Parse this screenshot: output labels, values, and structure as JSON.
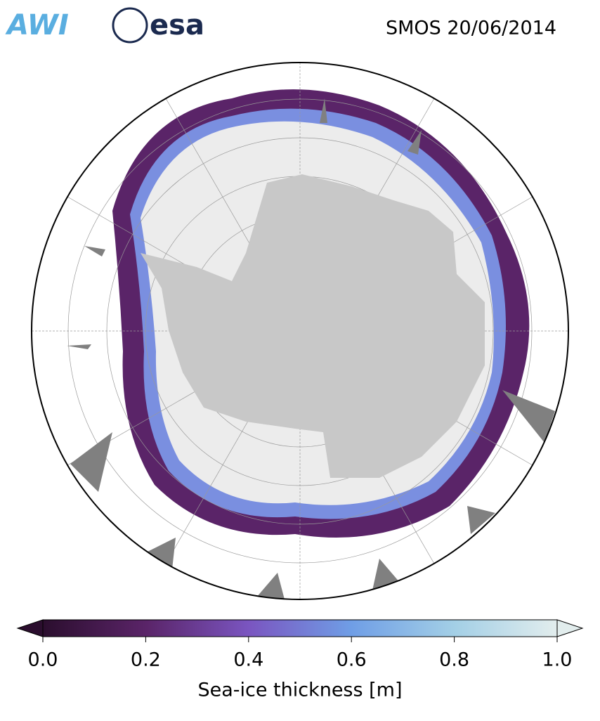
{
  "header": {
    "title": "SMOS 20/06/2014",
    "logos": [
      "AWI",
      "esa"
    ]
  },
  "colorbar": {
    "label": "Sea-ice thickness [m]",
    "lim": [
      0,
      1
    ],
    "ticks": [
      {
        "value": 0,
        "label": "0.0"
      },
      {
        "value": 0.2,
        "label": "0.2"
      },
      {
        "value": 0.4,
        "label": "0.4"
      },
      {
        "value": 0.6,
        "label": "0.6"
      },
      {
        "value": 0.8,
        "label": "0.8"
      },
      {
        "value": 1,
        "label": "1.0"
      }
    ],
    "colormap": [
      "#2b0e2e",
      "#5a2468",
      "#7a55c0",
      "#6f9ee6",
      "#a3cfe6",
      "#e2eded"
    ]
  }
}
